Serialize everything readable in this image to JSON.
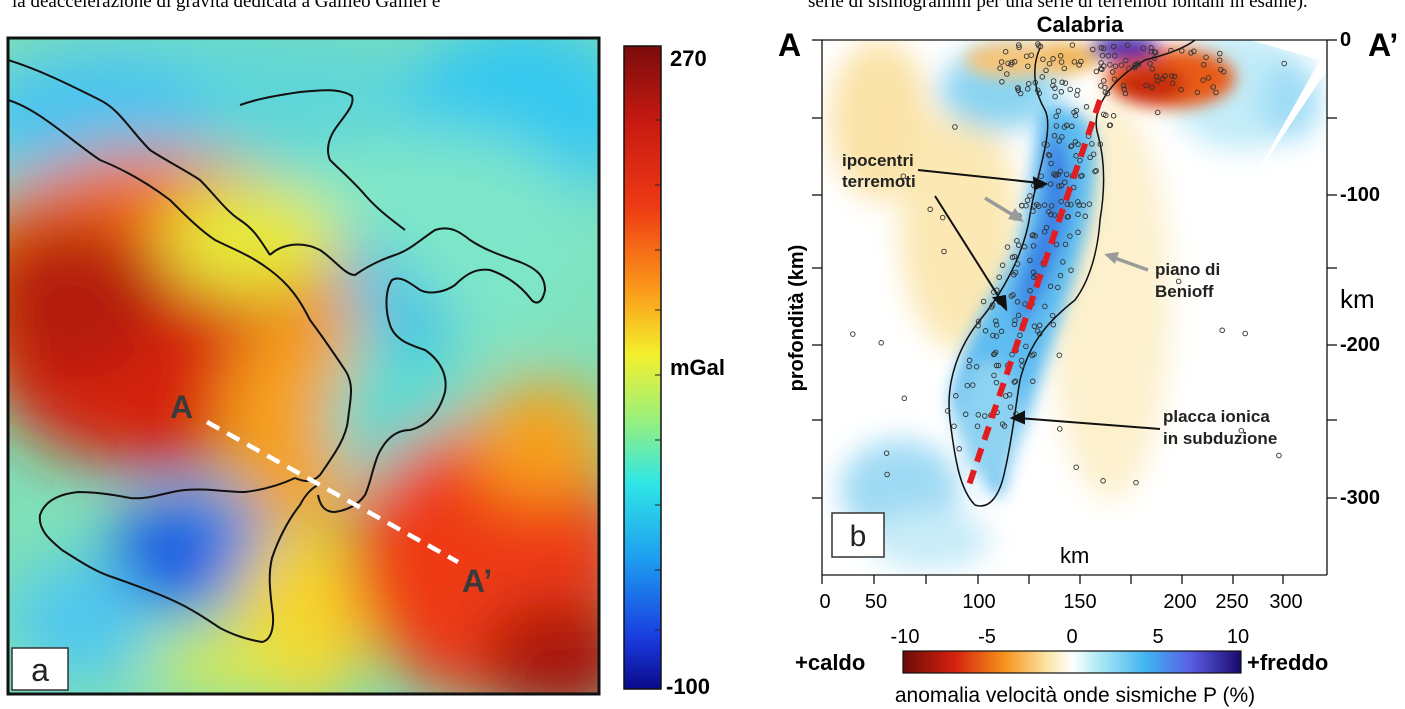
{
  "caption_fragment_left": "la deaccelerazione di gravità dedicata a Galileo Galilei e",
  "caption_fragment_right": "serie di sismogrammi per una serie di terremoti lontani in esame).",
  "panel_a": {
    "panel_label": "a",
    "point_a": "A",
    "point_a_prime": "A’",
    "colorbar": {
      "max": "270",
      "min": "-100",
      "unit": "mGal"
    }
  },
  "panel_b": {
    "panel_label": "b",
    "left_label": "A",
    "right_label": "A’",
    "top_title": "Calabria",
    "depth_axis_label": "profondità (km)",
    "depth_ticks": [
      "0",
      "-100",
      "-200",
      "-300"
    ],
    "right_unit": "km",
    "x_label": "km",
    "x_ticks": [
      "0",
      "50",
      "100",
      "150",
      "200",
      "250",
      "300"
    ],
    "annotations": {
      "hypocenters": [
        "ipocentri",
        "terremoti"
      ],
      "benioff": [
        "piano di",
        "Benioff"
      ],
      "slab": [
        "placca ionica",
        "in subduzione"
      ]
    },
    "legend": {
      "ticks": [
        "-10",
        "-5",
        "0",
        "5",
        "10"
      ],
      "hot": "+caldo",
      "cold": "+freddo",
      "title": "anomalia velocità onde sismiche P (%)"
    }
  }
}
